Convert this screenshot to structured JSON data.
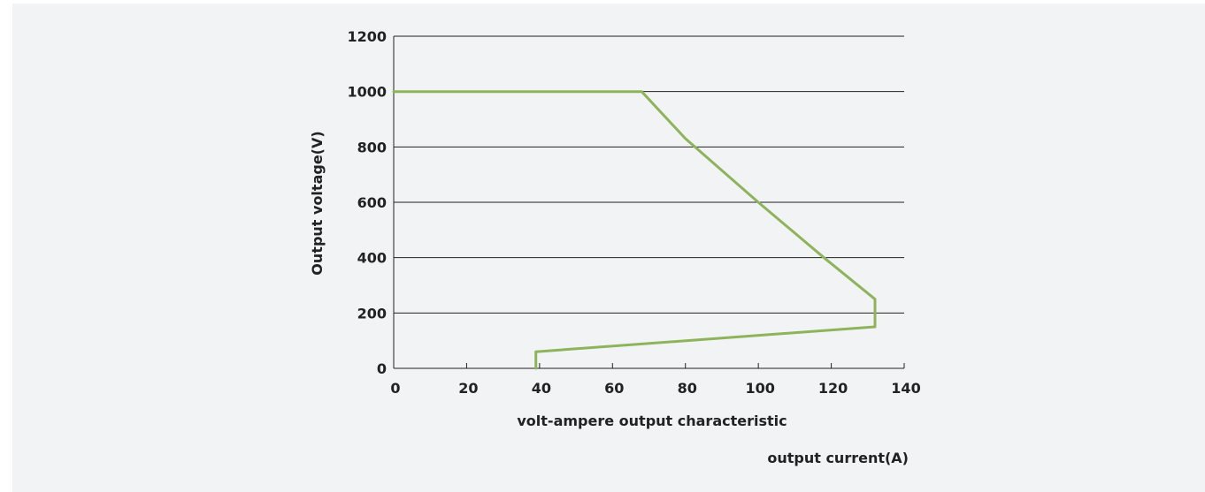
{
  "chart_data": {
    "type": "line",
    "title": "volt-ampere output characteristic",
    "xlabel": "output current(A)",
    "ylabel": "Output voltage(V)",
    "xlim": [
      0,
      140
    ],
    "ylim": [
      0,
      1200
    ],
    "xticks": [
      0,
      20,
      40,
      60,
      80,
      100,
      120,
      140
    ],
    "yticks": [
      0,
      200,
      400,
      600,
      800,
      1000,
      1200
    ],
    "grid": "horizontal",
    "series": [
      {
        "color": "#8db45a",
        "x": [
          0,
          68,
          80,
          100,
          118,
          132,
          132,
          39,
          39
        ],
        "y": [
          1000,
          1000,
          830,
          600,
          400,
          250,
          150,
          60,
          0
        ]
      }
    ]
  }
}
